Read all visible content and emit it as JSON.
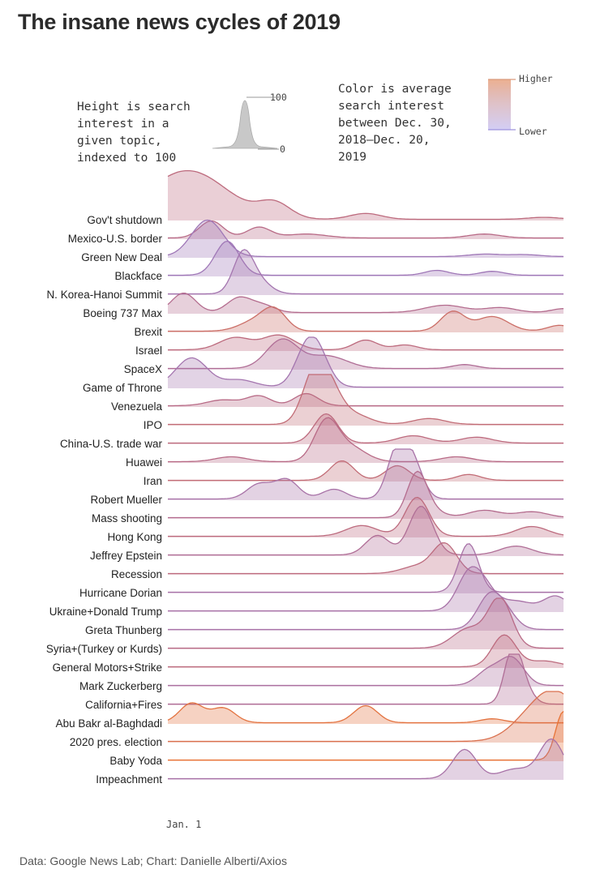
{
  "title": "The insane news cycles of 2019",
  "legend": {
    "height_text": "Height is search\ninterest in a\ngiven topic,\nindexed to 100",
    "height_max": "100",
    "height_min": "0",
    "color_text": "Color is average\nsearch interest\nbetween Dec. 30,\n2018–Dec. 20,\n2019",
    "color_high": "Higher",
    "color_low": "Lower"
  },
  "colors": {
    "low": "#8f7fd8",
    "mid": "#b86a86",
    "high": "#e87438"
  },
  "source": "Data: Google News Lab; Chart: Danielle Alberti/Axios",
  "chart_data": {
    "type": "area",
    "style": "ridgeline",
    "title": "The insane news cycles of 2019",
    "x_axis_label": "Jan. 1",
    "x_range": [
      "2018-12-30",
      "2019-12-20"
    ],
    "y_range": [
      0,
      100
    ],
    "series": [
      {
        "name": "Gov't shutdown",
        "avg": 0.55,
        "peaks": [
          [
            5,
            100,
            10
          ],
          [
            27,
            30,
            4
          ],
          [
            50,
            12,
            4
          ],
          [
            95,
            4,
            4
          ]
        ]
      },
      {
        "name": "Mexico-U.S. border",
        "avg": 0.5,
        "peaks": [
          [
            11,
            35,
            3
          ],
          [
            23,
            22,
            3
          ],
          [
            35,
            8,
            5
          ],
          [
            80,
            8,
            4
          ]
        ]
      },
      {
        "name": "Green New Deal",
        "avg": 0.2,
        "peaks": [
          [
            10,
            75,
            4
          ],
          [
            80,
            5,
            4
          ],
          [
            90,
            4,
            4
          ]
        ]
      },
      {
        "name": "Blackface",
        "avg": 0.2,
        "peaks": [
          [
            15,
            70,
            3
          ],
          [
            68,
            10,
            3
          ],
          [
            82,
            8,
            3
          ]
        ]
      },
      {
        "name": "N. Korea-Hanoi Summit",
        "avg": 0.25,
        "peaks": [
          [
            19,
            80,
            2.5
          ],
          [
            23,
            25,
            3
          ]
        ]
      },
      {
        "name": "Boeing 737 Max",
        "avg": 0.45,
        "peaks": [
          [
            4,
            40,
            3
          ],
          [
            18,
            30,
            3
          ],
          [
            24,
            15,
            3
          ],
          [
            70,
            15,
            5
          ],
          [
            84,
            10,
            4
          ],
          [
            100,
            8,
            3
          ]
        ]
      },
      {
        "name": "Brexit",
        "avg": 0.7,
        "peaks": [
          [
            27,
            40,
            3
          ],
          [
            22,
            20,
            4
          ],
          [
            72,
            40,
            3
          ],
          [
            82,
            30,
            4
          ],
          [
            99,
            12,
            3
          ]
        ]
      },
      {
        "name": "Israel",
        "avg": 0.55,
        "peaks": [
          [
            28,
            30,
            4
          ],
          [
            17,
            25,
            4
          ],
          [
            50,
            20,
            3
          ],
          [
            60,
            10,
            3
          ]
        ]
      },
      {
        "name": "SpaceX",
        "avg": 0.4,
        "peaks": [
          [
            29,
            60,
            4
          ],
          [
            39,
            20,
            4
          ],
          [
            44,
            10,
            4
          ],
          [
            75,
            8,
            3
          ]
        ]
      },
      {
        "name": "Game of Throne",
        "avg": 0.25,
        "peaks": [
          [
            6,
            60,
            4
          ],
          [
            35,
            65,
            3
          ],
          [
            38,
            55,
            3
          ],
          [
            18,
            15,
            4
          ]
        ]
      },
      {
        "name": "Venezuela",
        "avg": 0.5,
        "peaks": [
          [
            23,
            20,
            3
          ],
          [
            35,
            25,
            3
          ],
          [
            14,
            12,
            4
          ]
        ]
      },
      {
        "name": "IPO",
        "avg": 0.6,
        "peaks": [
          [
            37,
            100,
            3
          ],
          [
            41,
            60,
            3
          ],
          [
            47,
            20,
            4
          ],
          [
            66,
            12,
            4
          ]
        ]
      },
      {
        "name": "China-U.S. trade war",
        "avg": 0.55,
        "peaks": [
          [
            40,
            60,
            3
          ],
          [
            62,
            15,
            4
          ],
          [
            78,
            12,
            4
          ]
        ]
      },
      {
        "name": "Huawei",
        "avg": 0.5,
        "peaks": [
          [
            40,
            80,
            3
          ],
          [
            46,
            30,
            4
          ],
          [
            16,
            10,
            4
          ],
          [
            73,
            10,
            4
          ]
        ]
      },
      {
        "name": "Iran",
        "avg": 0.6,
        "peaks": [
          [
            44,
            40,
            3
          ],
          [
            58,
            30,
            3
          ],
          [
            76,
            12,
            3
          ]
        ]
      },
      {
        "name": "Robert Mueller",
        "avg": 0.3,
        "peaks": [
          [
            23,
            30,
            3
          ],
          [
            30,
            40,
            3
          ],
          [
            42,
            20,
            3
          ],
          [
            58,
            100,
            2.5
          ],
          [
            62,
            70,
            2.5
          ]
        ]
      },
      {
        "name": "Mass shooting",
        "avg": 0.45,
        "peaks": [
          [
            63,
            90,
            2.5
          ],
          [
            67,
            12,
            3
          ],
          [
            80,
            15,
            4
          ],
          [
            92,
            12,
            4
          ]
        ]
      },
      {
        "name": "Hong Kong",
        "avg": 0.55,
        "peaks": [
          [
            63,
            80,
            3
          ],
          [
            49,
            22,
            4
          ],
          [
            92,
            20,
            4
          ]
        ]
      },
      {
        "name": "Jeffrey Epstein",
        "avg": 0.4,
        "peaks": [
          [
            53,
            40,
            3
          ],
          [
            64,
            100,
            3
          ],
          [
            88,
            18,
            4
          ]
        ]
      },
      {
        "name": "Recession",
        "avg": 0.55,
        "peaks": [
          [
            70,
            60,
            3
          ],
          [
            63,
            15,
            4
          ]
        ]
      },
      {
        "name": "Hurricane Dorian",
        "avg": 0.3,
        "peaks": [
          [
            76,
            100,
            2.5
          ]
        ]
      },
      {
        "name": "Ukraine+Donald Trump",
        "avg": 0.3,
        "peaks": [
          [
            76,
            70,
            3
          ],
          [
            80,
            40,
            3
          ],
          [
            88,
            20,
            4
          ],
          [
            98,
            30,
            3
          ]
        ]
      },
      {
        "name": "Greta Thunberg",
        "avg": 0.3,
        "peaks": [
          [
            81,
            60,
            3
          ],
          [
            85,
            35,
            3
          ]
        ]
      },
      {
        "name": "Syria+(Turkey or Kurds)",
        "avg": 0.5,
        "peaks": [
          [
            84,
            100,
            3
          ],
          [
            76,
            40,
            4
          ]
        ]
      },
      {
        "name": "General Motors+Strike",
        "avg": 0.55,
        "peaks": [
          [
            85,
            65,
            3
          ],
          [
            95,
            12,
            4
          ]
        ]
      },
      {
        "name": "Mark Zuckerberg",
        "avg": 0.35,
        "peaks": [
          [
            87,
            55,
            3
          ],
          [
            81,
            30,
            3
          ]
        ]
      },
      {
        "name": "California+Fires",
        "avg": 0.4,
        "peaks": [
          [
            87,
            85,
            2
          ],
          [
            89,
            50,
            2.5
          ]
        ]
      },
      {
        "name": "Abu Bakr al-Baghdadi",
        "avg": 0.95,
        "peaks": [
          [
            6,
            40,
            3
          ],
          [
            14,
            30,
            3
          ],
          [
            50,
            35,
            3
          ],
          [
            82,
            8,
            3
          ]
        ]
      },
      {
        "name": "2020 pres. election",
        "avg": 0.85,
        "peaks": [
          [
            98,
            100,
            6
          ],
          [
            90,
            20,
            5
          ]
        ]
      },
      {
        "name": "Baby Yoda",
        "avg": 1.0,
        "peaks": [
          [
            100,
            100,
            2
          ]
        ]
      },
      {
        "name": "Impeachment",
        "avg": 0.3,
        "peaks": [
          [
            75,
            60,
            3
          ],
          [
            88,
            20,
            4
          ],
          [
            97,
            80,
            3
          ]
        ]
      }
    ]
  }
}
